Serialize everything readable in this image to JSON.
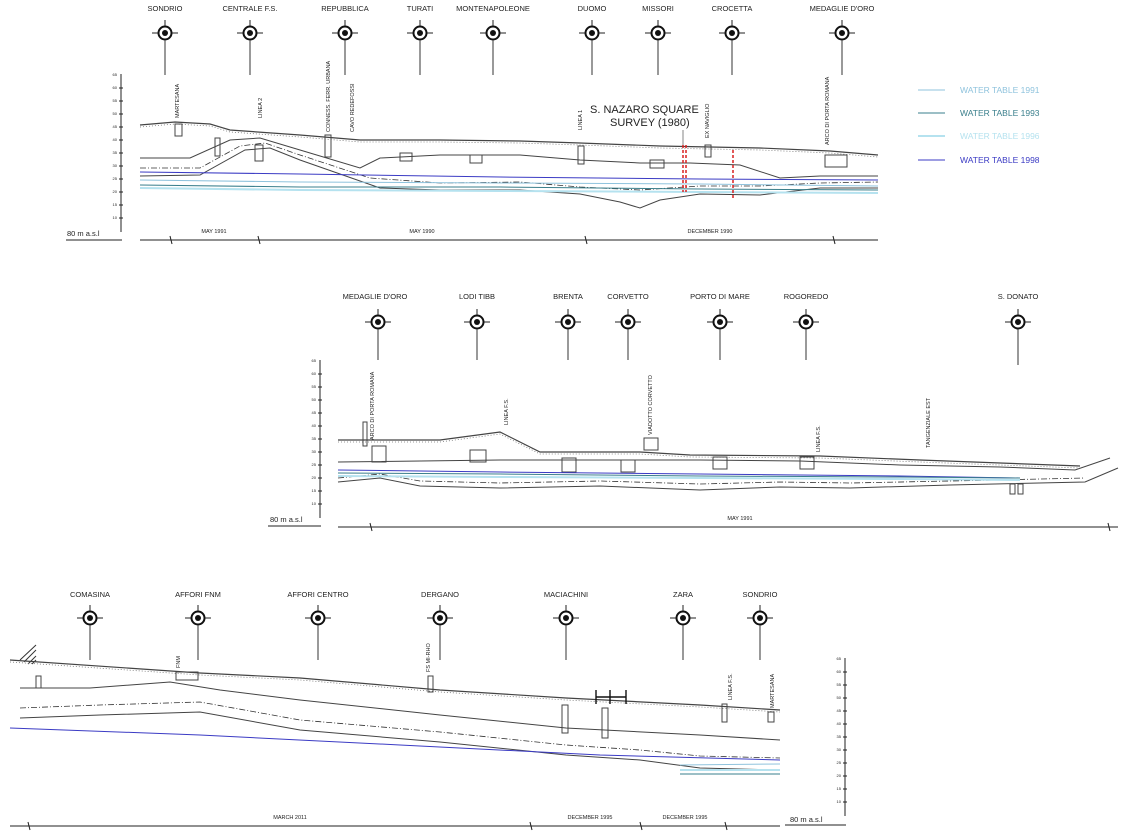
{
  "profiles": [
    {
      "stations": [
        "SONDRIO",
        "CENTRALE F.S.",
        "REPUBBLICA",
        "TURATI",
        "MONTENAPOLEONE",
        "DUOMO",
        "MISSORI",
        "CROCETTA",
        "MEDAGLIE D'ORO"
      ],
      "features": [
        "MARTESANA",
        "LINEA 2",
        "CONNESS. FERR. URBANA",
        "CAVO REDEFOSSI",
        "LINEA 1",
        "EX NAVIGLIO",
        "ARCO DI PORTA ROMANA"
      ],
      "periods": [
        "MAY 1991",
        "MAY 1990",
        "DECEMBER 1990"
      ],
      "scale_label": "80 m a.s.l",
      "ticks": [
        "10",
        "15",
        "20",
        "25",
        "30",
        "35",
        "40",
        "45",
        "50",
        "55",
        "60",
        "65"
      ],
      "annotation": [
        "S. NAZARO SQUARE",
        "SURVEY (1980)"
      ]
    },
    {
      "stations": [
        "MEDAGLIE D'ORO",
        "LODI TIBB",
        "BRENTA",
        "CORVETTO",
        "PORTO DI MARE",
        "ROGOREDO",
        "S. DONATO"
      ],
      "features": [
        "ARCO DI PORTA ROMANA",
        "LINEA F.S.",
        "VIADOTTO CORVETTO",
        "LINEA F.S.",
        "TANGENZIALE EST"
      ],
      "periods": [
        "MAY 1991"
      ],
      "scale_label": "80 m a.s.l",
      "ticks": [
        "10",
        "15",
        "20",
        "25",
        "30",
        "35",
        "40",
        "45",
        "50",
        "55",
        "60",
        "65"
      ]
    },
    {
      "stations": [
        "COMASINA",
        "AFFORI FNM",
        "AFFORI CENTRO",
        "DERGANO",
        "MACIACHINI",
        "ZARA",
        "SONDRIO"
      ],
      "features": [
        "FNM",
        "FS MI-RHO",
        "LINEA F.S.",
        "MARTESANA"
      ],
      "periods": [
        "MARCH 2011",
        "DECEMBER 1995",
        "DECEMBER 1995"
      ],
      "scale_label": "80 m a.s.l",
      "ticks": [
        "10",
        "15",
        "20",
        "25",
        "30",
        "35",
        "40",
        "45",
        "50",
        "55",
        "60",
        "65"
      ]
    }
  ],
  "legend": [
    {
      "label": "WATER TABLE 1991",
      "color": "#8fc3dd"
    },
    {
      "label": "WATER TABLE 1993",
      "color": "#3a7f8c"
    },
    {
      "label": "WATER TABLE 1996",
      "color": "#b5e2ef"
    },
    {
      "label": "WATER TABLE 1998",
      "color": "#3b3bc4"
    }
  ]
}
